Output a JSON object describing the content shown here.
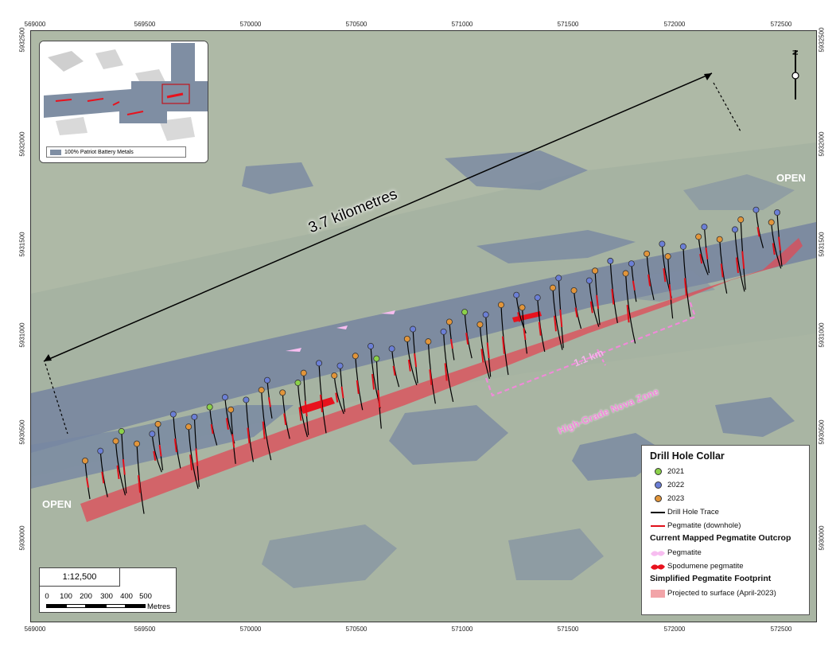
{
  "map": {
    "axes": {
      "easting": [
        "569000",
        "569500",
        "570000",
        "570500",
        "571000",
        "571500",
        "572000",
        "572500"
      ],
      "northing": [
        "5932500",
        "5932000",
        "5931500",
        "5931000",
        "5930500",
        "5930000"
      ]
    },
    "annotations": {
      "distance": "3.7 kilometres",
      "open_left": "OPEN",
      "open_right": "OPEN",
      "length": "1.1 km",
      "zone": "High-Grade Nova Zone"
    },
    "north_label": "N",
    "inset": {
      "legend_label": "100% Patriot Battery Metals"
    },
    "scale": {
      "ratio": "1:12,500",
      "ticks": [
        "0",
        "100",
        "200",
        "300",
        "400",
        "500"
      ],
      "unit": "Metres"
    },
    "legend": {
      "title": "Drill Hole Collar",
      "collars": [
        {
          "label": "2021",
          "color": "#8bd14a"
        },
        {
          "label": "2022",
          "color": "#6b7fd6"
        },
        {
          "label": "2023",
          "color": "#e2953a"
        }
      ],
      "trace_label": "Drill Hole Trace",
      "pegmatite_downhole_label": "Pegmatite (downhole)",
      "outcrop_title": "Current Mapped Pegmatite Outcrop",
      "outcrop_pegmatite_label": "Pegmatite",
      "outcrop_spodumene_label": "Spodumene pegmatite",
      "footprint_title": "Simplified Pegmatite Footprint",
      "footprint_label": "Projected to surface (April-2023)"
    },
    "colors": {
      "footprint": "#e04a55",
      "pegmatite_downhole": "#e0101a",
      "outcrop_pegmatite": "#f7bdf0",
      "spodumene": "#e8121d",
      "zone_bracket": "#f08ad9",
      "water": "#6f7f98",
      "land": "#9fae9c"
    }
  }
}
